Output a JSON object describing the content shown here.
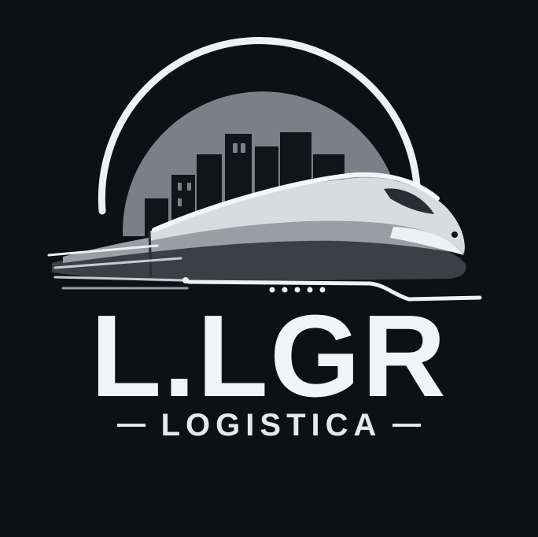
{
  "logo": {
    "brand_name": "L.LGR",
    "tagline": "LOGISTICA",
    "icons": [
      "city-skyline-icon",
      "high-speed-train-icon"
    ]
  },
  "colors": {
    "background": "#0d1114",
    "text": "#f1f3f4",
    "dome": "#7c8086",
    "train_light": "#d9dcdf",
    "train_mid": "#9a9ea3",
    "train_dark": "#3c4045"
  }
}
